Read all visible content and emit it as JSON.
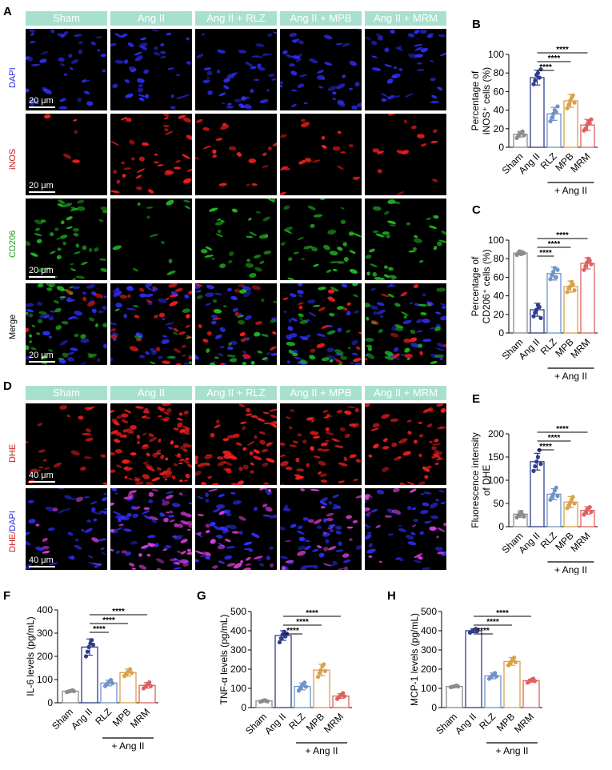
{
  "panels": {
    "A": "A",
    "B": "B",
    "C": "C",
    "D": "D",
    "E": "E",
    "F": "F",
    "G": "G",
    "H": "H"
  },
  "groups": [
    "Sham",
    "Ang II",
    "Ang II + RLZ",
    "Ang II + MPB",
    "Ang II + MRM"
  ],
  "panel_a": {
    "rows": [
      {
        "label": "DAPI",
        "color": "#2a2ae0",
        "scale": "20 μm"
      },
      {
        "label": "iNOS",
        "color": "#c41818",
        "scale": "20 μm"
      },
      {
        "label": "CD206",
        "color": "#1f9a1f",
        "scale": "20 μm"
      },
      {
        "label": "Merge",
        "color": "#000000",
        "scale": "20 μm"
      }
    ]
  },
  "panel_d": {
    "rows": [
      {
        "label": "DHE",
        "color": "#c41818",
        "scale": "40 μm"
      },
      {
        "label_a": "DHE/",
        "label_b": "DAPI",
        "color_a": "#c41818",
        "color_b": "#2a2ae0",
        "scale": "40 μm"
      }
    ]
  },
  "x_categories": [
    "Sham",
    "Ang II",
    "RLZ",
    "MPB",
    "MRM"
  ],
  "treatment_label": "+ Ang II",
  "sig": "****",
  "series_colors": [
    "#8c8c8c",
    "#2f3d8c",
    "#6f93c8",
    "#d9a24a",
    "#e06060"
  ],
  "chart_data": [
    {
      "id": "B",
      "type": "bar",
      "ylabel_line1": "Percentage of",
      "ylabel_line2": "iNOS⁺ cells (%)",
      "categories": [
        "Sham",
        "Ang II",
        "RLZ",
        "MPB",
        "MRM"
      ],
      "values": [
        14,
        75,
        36,
        50,
        24
      ],
      "errors": [
        3,
        8,
        7,
        7,
        6
      ],
      "ylim": [
        0,
        100
      ],
      "yticks": [
        0,
        20,
        40,
        60,
        80,
        100
      ],
      "points": [
        [
          10,
          12,
          15,
          16,
          17,
          13
        ],
        [
          68,
          72,
          78,
          80,
          75,
          84
        ],
        [
          28,
          32,
          36,
          40,
          38,
          44
        ],
        [
          42,
          46,
          50,
          53,
          56,
          48
        ],
        [
          18,
          20,
          24,
          28,
          26,
          30
        ]
      ]
    },
    {
      "id": "C",
      "type": "bar",
      "ylabel_line1": "Percentage of",
      "ylabel_line2": "CD206⁺ cells (%)",
      "categories": [
        "Sham",
        "Ang II",
        "RLZ",
        "MPB",
        "MRM"
      ],
      "values": [
        86,
        25,
        64,
        50,
        75
      ],
      "errors": [
        2,
        7,
        7,
        6,
        6
      ],
      "ylim": [
        0,
        100
      ],
      "yticks": [
        0,
        20,
        40,
        60,
        80,
        100
      ],
      "points": [
        [
          84,
          86,
          88,
          85,
          87,
          86
        ],
        [
          18,
          22,
          25,
          30,
          28,
          16
        ],
        [
          58,
          62,
          66,
          70,
          60,
          68
        ],
        [
          44,
          48,
          50,
          55,
          52,
          46
        ],
        [
          68,
          72,
          76,
          80,
          78,
          74
        ]
      ]
    },
    {
      "id": "E",
      "type": "bar",
      "ylabel_line1": "Fluorescence intensity",
      "ylabel_line2": "of DHE",
      "categories": [
        "Sham",
        "Ang II",
        "RLZ",
        "MPB",
        "MRM"
      ],
      "values": [
        27,
        140,
        70,
        53,
        35
      ],
      "errors": [
        7,
        18,
        12,
        12,
        8
      ],
      "ylim": [
        0,
        200
      ],
      "yticks": [
        0,
        50,
        100,
        150,
        200
      ],
      "points": [
        [
          20,
          24,
          28,
          32,
          26,
          22
        ],
        [
          120,
          130,
          140,
          150,
          165,
          135
        ],
        [
          58,
          64,
          70,
          78,
          84,
          66
        ],
        [
          40,
          46,
          52,
          58,
          64,
          50
        ],
        [
          26,
          30,
          36,
          40,
          42,
          32
        ]
      ]
    },
    {
      "id": "F",
      "type": "bar",
      "ylabel": "IL-6 levels (pg/mL)",
      "categories": [
        "Sham",
        "Ang II",
        "RLZ",
        "MPB",
        "MRM"
      ],
      "values": [
        50,
        240,
        85,
        130,
        75
      ],
      "errors": [
        4,
        35,
        12,
        15,
        12
      ],
      "ylim": [
        0,
        400
      ],
      "yticks": [
        0,
        100,
        200,
        300,
        400
      ],
      "points": [
        [
          46,
          48,
          50,
          52,
          54,
          50
        ],
        [
          200,
          220,
          240,
          255,
          270,
          250
        ],
        [
          72,
          80,
          85,
          92,
          98,
          84
        ],
        [
          115,
          122,
          130,
          138,
          145,
          128
        ],
        [
          62,
          70,
          75,
          82,
          88,
          72
        ]
      ]
    },
    {
      "id": "G",
      "type": "bar",
      "ylabel": "TNF-α levels (pg/mL)",
      "categories": [
        "Sham",
        "Ang II",
        "RLZ",
        "MPB",
        "MRM"
      ],
      "values": [
        35,
        375,
        110,
        195,
        60
      ],
      "errors": [
        4,
        25,
        18,
        30,
        12
      ],
      "ylim": [
        0,
        500
      ],
      "yticks": [
        0,
        100,
        200,
        300,
        400,
        500
      ],
      "points": [
        [
          30,
          33,
          36,
          38,
          35,
          32
        ],
        [
          340,
          360,
          380,
          395,
          370,
          385
        ],
        [
          88,
          100,
          112,
          122,
          130,
          108
        ],
        [
          160,
          180,
          195,
          215,
          225,
          190
        ],
        [
          45,
          52,
          60,
          68,
          75,
          58
        ]
      ]
    },
    {
      "id": "H",
      "type": "bar",
      "ylabel": "MCP-1 levels (pg/mL)",
      "categories": [
        "Sham",
        "Ang II",
        "RLZ",
        "MPB",
        "MRM"
      ],
      "values": [
        110,
        400,
        165,
        240,
        140
      ],
      "errors": [
        4,
        10,
        15,
        20,
        8
      ],
      "ylim": [
        0,
        500
      ],
      "yticks": [
        0,
        100,
        200,
        300,
        400,
        500
      ],
      "points": [
        [
          106,
          108,
          110,
          112,
          114,
          110
        ],
        [
          390,
          395,
          400,
          405,
          410,
          398
        ],
        [
          150,
          158,
          165,
          172,
          180,
          162
        ],
        [
          220,
          230,
          240,
          252,
          260,
          236
        ],
        [
          130,
          135,
          140,
          146,
          150,
          138
        ]
      ]
    }
  ]
}
